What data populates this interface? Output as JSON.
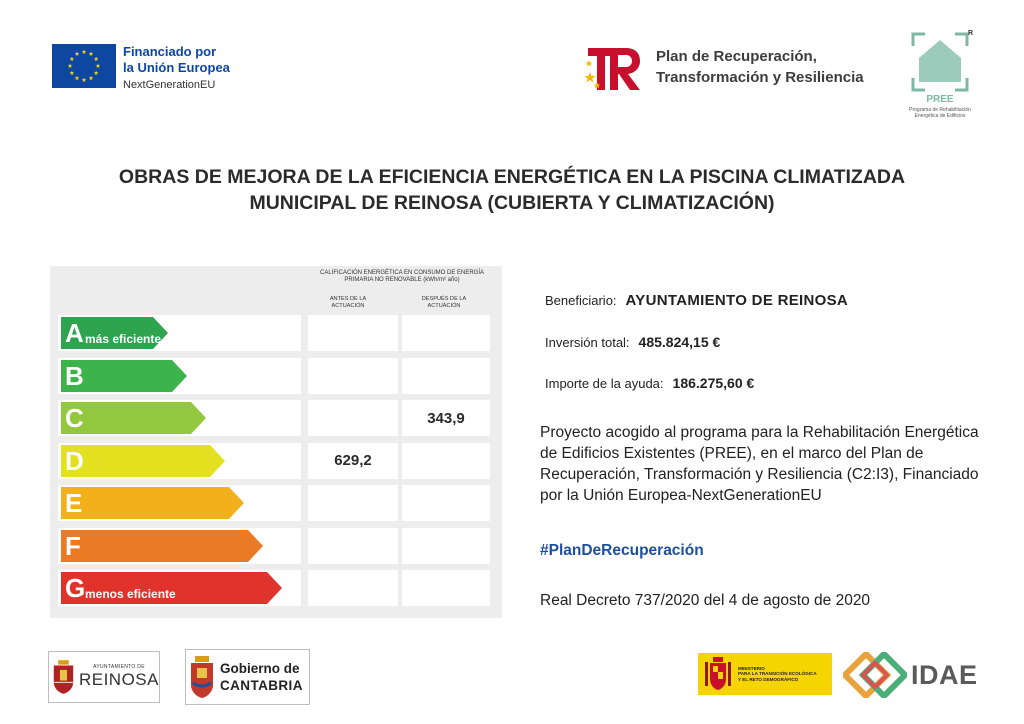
{
  "header": {
    "eu": {
      "line1": "Financiado por",
      "line2": "la Unión Europea",
      "line3": "NextGenerationEU",
      "flag_color": "#0e47a1",
      "star_color": "#ffdd00"
    },
    "plan": {
      "line1": "Plan de Recuperación,",
      "line2": "Transformación y Resiliencia"
    },
    "pree": {
      "name": "PREE",
      "subtitle_line1": "Programa de Rehabilitación",
      "subtitle_line2": "Energética de Edificios",
      "registered": "R",
      "color": "#7fb7a6"
    }
  },
  "title": {
    "line1": "OBRAS DE MEJORA DE LA EFICIENCIA ENERGÉTICA EN LA PISCINA CLIMATIZADA",
    "line2": "MUNICIPAL DE REINOSA (CUBIERTA Y CLIMATIZACIÓN)"
  },
  "energy_chart": {
    "heading_line1": "CALIFICACIÓN ENERGÉTICA EN CONSUMO DE ENERGÍA",
    "heading_line2": "PRIMARIA NO RENOVABLE (kWh/m² año)",
    "col_before_line1": "ANTES DE LA",
    "col_before_line2": "ACTUACIÓN",
    "col_after_line1": "DESPUÉS DE LA",
    "col_after_line2": "ACTUACIÓN",
    "classes": [
      {
        "letter": "A",
        "sub": "más eficiente",
        "color": "#2ea44f",
        "before": "",
        "after": ""
      },
      {
        "letter": "B",
        "sub": "",
        "color": "#3cb44b",
        "before": "",
        "after": ""
      },
      {
        "letter": "C",
        "sub": "",
        "color": "#93c83e",
        "before": "",
        "after": "343,9"
      },
      {
        "letter": "D",
        "sub": "",
        "color": "#e3e11f",
        "before": "629,2",
        "after": ""
      },
      {
        "letter": "E",
        "sub": "",
        "color": "#f2b11b",
        "before": "",
        "after": ""
      },
      {
        "letter": "F",
        "sub": "",
        "color": "#eb7a24",
        "before": "",
        "after": ""
      },
      {
        "letter": "G",
        "sub": "menos eficiente",
        "color": "#e0332c",
        "before": "",
        "after": ""
      }
    ]
  },
  "info": {
    "beneficiary_label": "Beneficiario:",
    "beneficiary_value": "AYUNTAMIENTO DE REINOSA",
    "investment_label": "Inversión total:",
    "investment_value": "485.824,15 €",
    "aid_label": "Importe de la ayuda:",
    "aid_value": "186.275,60 €",
    "description": "Proyecto acogido al programa para la Rehabilitación Energética de Edificios Existentes (PREE), en el marco del Plan de Recuperación, Transformación y Resiliencia (C2:I3), Financiado por la Unión Europea-NextGenerationEU",
    "hashtag": "#PlanDeRecuperación",
    "decree": "Real Decreto 737/2020 del 4 de agosto de 2020",
    "hashtag_color": "#1d4f9e"
  },
  "footer": {
    "reinosa_small": "AYUNTAMIENTO DE",
    "reinosa_big": "REINOSA",
    "cantabria_line1": "Gobierno de",
    "cantabria_line2": "CANTABRIA",
    "ministerio_line1": "MINISTERIO",
    "ministerio_line2": "PARA LA TRANSICIÓN ECOLÓGICA",
    "ministerio_line3": "Y EL RETO DEMOGRÁFICO",
    "ministerio_color": "#f5d400",
    "idae": "IDAE"
  }
}
